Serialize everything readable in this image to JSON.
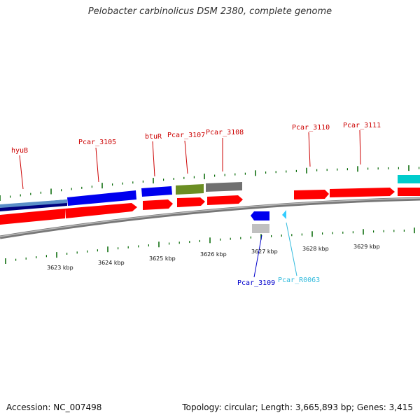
{
  "title": "Pelobacter carbinolicus DSM 2380, complete genome",
  "footer": {
    "accession": "Accession: NC_007498",
    "summary": "Topology: circular; Length: 3,665,893 bp; Genes: 3,415"
  },
  "kbp_labels": [
    "3623 kbp",
    "3624 kbp",
    "3625 kbp",
    "3626 kbp",
    "3627 kbp",
    "3628 kbp",
    "3629 kbp"
  ],
  "gene_labels": [
    {
      "text": "hyuB",
      "color": "#cc0000"
    },
    {
      "text": "Pcar_3105",
      "color": "#cc0000"
    },
    {
      "text": "btuR",
      "color": "#cc0000"
    },
    {
      "text": "Pcar_3107",
      "color": "#cc0000"
    },
    {
      "text": "Pcar_3108",
      "color": "#cc0000"
    },
    {
      "text": "Pcar_3110",
      "color": "#cc0000"
    },
    {
      "text": "Pcar_3111",
      "color": "#cc0000"
    },
    {
      "text": "Pcar_3109",
      "color": "#0000cc"
    },
    {
      "text": "Pcar_R0063",
      "color": "#33bbdd"
    }
  ],
  "colors": {
    "gene": "#ff0000",
    "cds_blue": "#0000ee",
    "dark_navy": "#000080",
    "steel": "#5b8fc8",
    "olive": "#6b8e23",
    "gray": "#707070",
    "light_gray": "#c0c0c0",
    "cyan": "#00cccc",
    "rna": "#33ccff",
    "tick": "#006600",
    "backbone": "#888888"
  }
}
